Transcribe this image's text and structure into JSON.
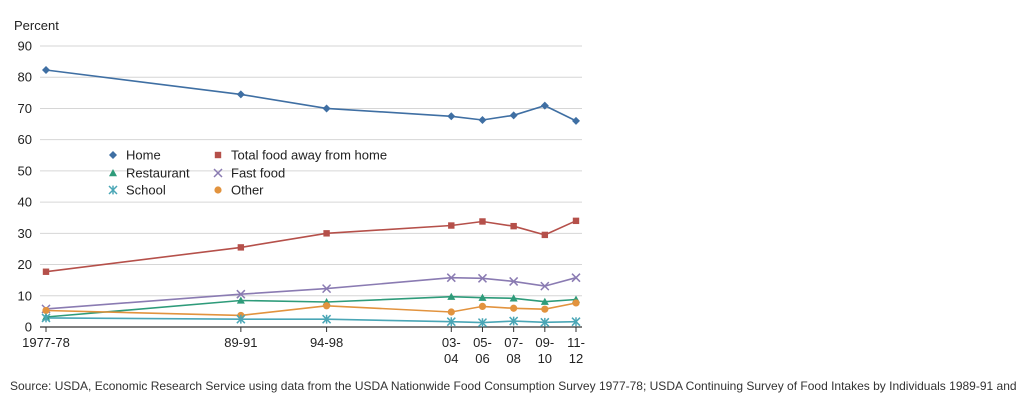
{
  "chart_data": {
    "type": "line",
    "ylabel": "Percent",
    "ylim": [
      0,
      90
    ],
    "yticks": [
      0,
      10,
      20,
      30,
      40,
      50,
      60,
      70,
      80,
      90
    ],
    "x": [
      1977.5,
      1990,
      1995.5,
      2003.5,
      2005.5,
      2007.5,
      2009.5,
      2011.5
    ],
    "xtick_labels": [
      {
        "x": 1977.5,
        "line1": "1977-78",
        "line2": ""
      },
      {
        "x": 1990,
        "line1": "89-91",
        "line2": ""
      },
      {
        "x": 1995.5,
        "line1": "94-98",
        "line2": ""
      },
      {
        "x": 2003.5,
        "line1": "03-",
        "line2": "04"
      },
      {
        "x": 2005.5,
        "line1": "05-",
        "line2": "06"
      },
      {
        "x": 2007.5,
        "line1": "07-",
        "line2": "08"
      },
      {
        "x": 2009.5,
        "line1": "09-",
        "line2": "10"
      },
      {
        "x": 2011.5,
        "line1": "11-",
        "line2": "12"
      }
    ],
    "series": [
      {
        "name": "Home",
        "color": "#3f6fa3",
        "marker": "diamond",
        "values": [
          82.3,
          74.5,
          70.0,
          67.5,
          66.3,
          67.8,
          70.9,
          66.0
        ]
      },
      {
        "name": "Total food away from home",
        "color": "#b5504a",
        "marker": "square",
        "values": [
          17.7,
          25.5,
          30.0,
          32.5,
          33.8,
          32.3,
          29.5,
          34.0
        ]
      },
      {
        "name": "Fast food",
        "color": "#8a7bb2",
        "marker": "x",
        "values": [
          5.8,
          10.5,
          12.3,
          15.8,
          15.6,
          14.6,
          13.1,
          15.8
        ]
      },
      {
        "name": "Restaurant",
        "color": "#2e9b7a",
        "marker": "triangle",
        "values": [
          3.2,
          8.5,
          8.0,
          9.7,
          9.4,
          9.2,
          8.1,
          8.8
        ]
      },
      {
        "name": "Other",
        "color": "#e2933e",
        "marker": "circle",
        "values": [
          5.3,
          3.7,
          6.8,
          4.8,
          6.6,
          6.0,
          5.7,
          7.7
        ]
      },
      {
        "name": "School",
        "color": "#4aa6b6",
        "marker": "asterisk",
        "values": [
          2.9,
          2.5,
          2.5,
          1.7,
          1.4,
          1.9,
          1.5,
          1.7
        ]
      }
    ],
    "legend": {
      "placement": "center",
      "order": [
        [
          "Home",
          "Total food away from home"
        ],
        [
          "Restaurant",
          "Fast food"
        ],
        [
          "School",
          "Other"
        ]
      ]
    }
  },
  "source_note": "Source: USDA, Economic Research Service using data from the USDA Nationwide Food Consumption Survey 1977-78; USDA Continuing Survey of Food Intakes by Individuals 1989-91 and"
}
